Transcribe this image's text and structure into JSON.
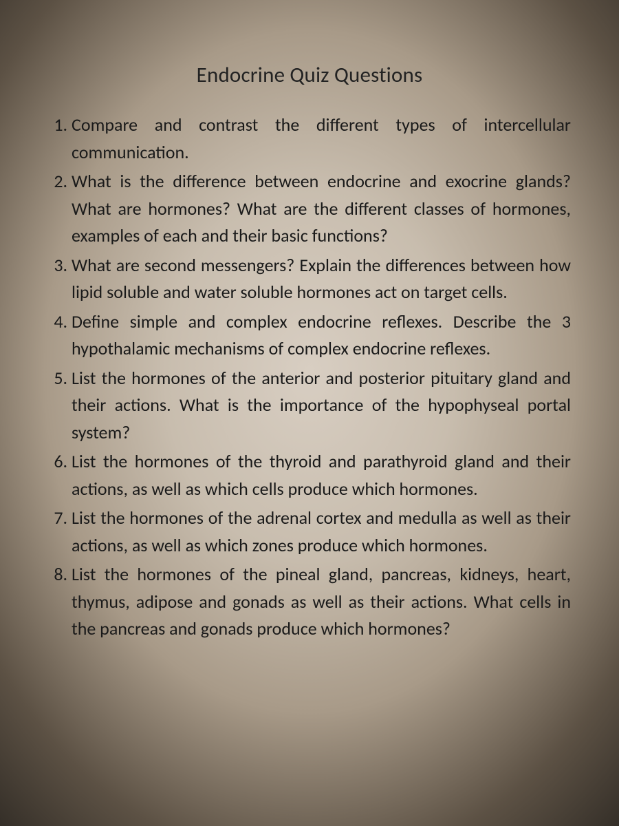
{
  "document": {
    "title": "Endocrine Quiz Questions",
    "title_fontsize": 31,
    "body_fontsize": 26,
    "line_height": 1.52,
    "text_color": "#1a1a1a",
    "background_gradient": {
      "type": "radial",
      "stops": [
        "#d8cec2",
        "#c8bdae",
        "#a89a88",
        "#5c5144",
        "#2f2a24"
      ]
    },
    "font_family": "Calibri",
    "text_align": "justify",
    "questions": [
      "Compare and contrast the different types of intercellular communication.",
      "What is the difference between endocrine and exocrine glands? What are hormones? What are the different classes of hormones, examples of each and their basic functions?",
      "What are second messengers? Explain the differences between how lipid soluble and water soluble hormones act on target cells.",
      "Define simple and complex endocrine reflexes. Describe the 3 hypothalamic mechanisms of complex endocrine reflexes.",
      "List the hormones of the anterior and posterior pituitary gland and their actions. What is the importance of the hypophyseal portal system?",
      "List the hormones of the thyroid and parathyroid gland and their actions, as well as which cells produce which hormones.",
      "List the hormones of the adrenal cortex and medulla as well as their actions, as well as which zones produce which hormones.",
      "List the hormones of the pineal gland, pancreas, kidneys, heart, thymus, adipose and gonads as well as their actions. What cells in the pancreas and gonads produce which hormones?"
    ]
  }
}
